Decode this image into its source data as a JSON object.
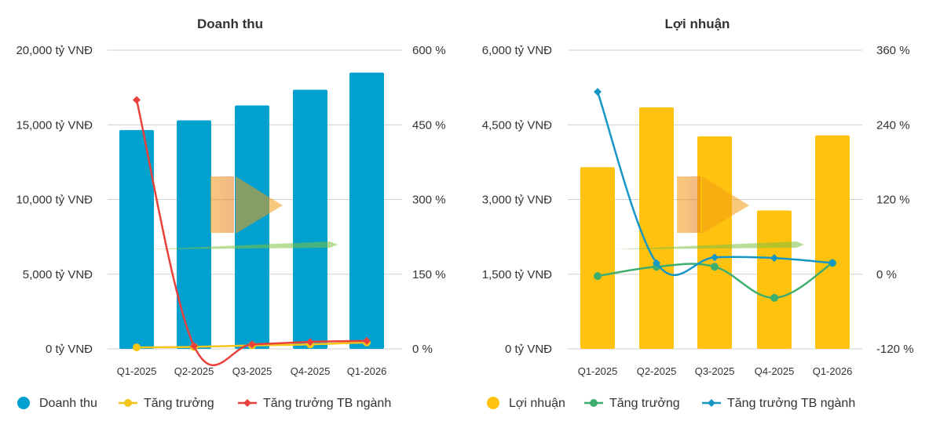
{
  "chart_data": [
    {
      "type": "bar",
      "title": "Doanh thu",
      "categories": [
        "Q1-2025",
        "Q2-2025",
        "Q3-2025",
        "Q4-2025",
        "Q1-2026"
      ],
      "ylim": [
        0,
        20000
      ],
      "y_ticks": [
        "0 tỷ VNĐ",
        "5,000 tỷ VNĐ",
        "10,000 tỷ VNĐ",
        "15,000 tỷ VNĐ",
        "20,000 tỷ VNĐ"
      ],
      "y2lim": [
        0,
        600
      ],
      "y2_ticks": [
        "0 %",
        "150 %",
        "300 %",
        "450 %",
        "600 %"
      ],
      "grid": true,
      "legend_position": "bottom",
      "bar_series": {
        "name": "Doanh thu",
        "values": [
          14650,
          15300,
          16300,
          17350,
          18500
        ],
        "color": "#00a0cf"
      },
      "line_series": [
        {
          "name": "Tăng trưởng",
          "values": [
            3,
            4,
            7,
            9,
            13
          ],
          "color": "#f5c518",
          "marker": "circle"
        },
        {
          "name": "Tăng trưởng TB ngành",
          "values": [
            500,
            6,
            9,
            14,
            16
          ],
          "color": "#e8403a",
          "marker": "diamond"
        }
      ]
    },
    {
      "type": "bar",
      "title": "Lợi nhuận",
      "categories": [
        "Q1-2025",
        "Q2-2025",
        "Q3-2025",
        "Q4-2025",
        "Q1-2026"
      ],
      "ylim": [
        0,
        6000
      ],
      "y_ticks": [
        "0 tỷ VNĐ",
        "1,500 tỷ VNĐ",
        "3,000 tỷ VNĐ",
        "4,500 tỷ VNĐ",
        "6,000 tỷ VNĐ"
      ],
      "y2lim": [
        -120,
        360
      ],
      "y2_ticks": [
        "-120 %",
        "0 %",
        "120 %",
        "240 %",
        "360 %"
      ],
      "grid": true,
      "legend_position": "bottom",
      "bar_series": {
        "name": "Lợi nhuận",
        "values": [
          3650,
          4850,
          4270,
          2780,
          4290
        ],
        "color": "#ffc20e"
      },
      "line_series": [
        {
          "name": "Tăng trưởng",
          "values": [
            -3,
            12,
            12,
            -38,
            18
          ],
          "color": "#3dae6e",
          "marker": "circle"
        },
        {
          "name": "Tăng trưởng TB ngành",
          "values": [
            293,
            18,
            27,
            26,
            18
          ],
          "color": "#1597c6",
          "marker": "diamond"
        }
      ]
    }
  ]
}
